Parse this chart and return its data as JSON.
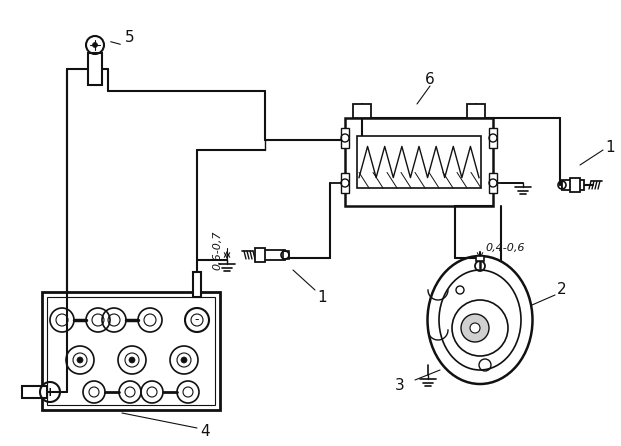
{
  "bg_color": "#ffffff",
  "line_color": "#111111",
  "annotation_04_06": "0,4-0,6",
  "annotation_06_07": "0,6-0,7"
}
